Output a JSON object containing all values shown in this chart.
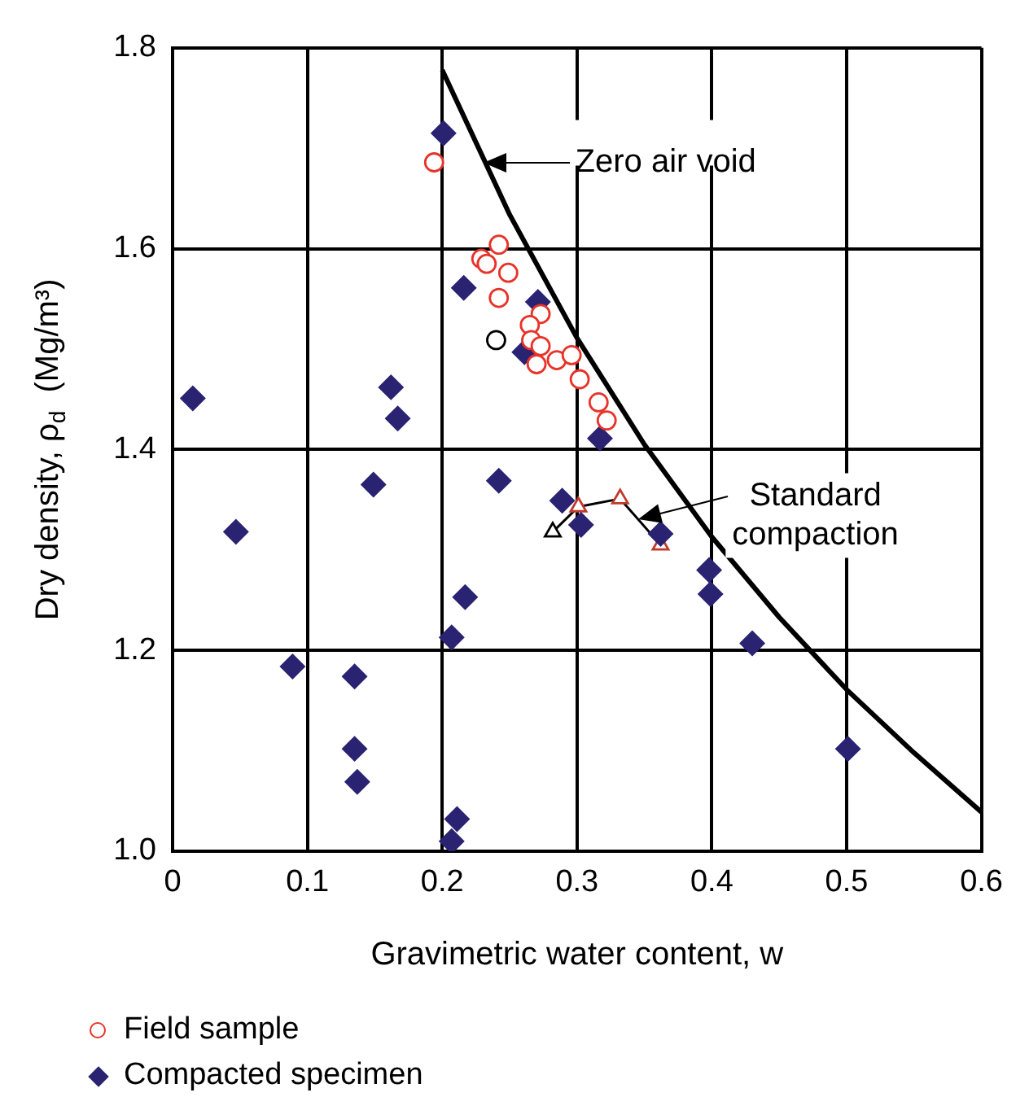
{
  "chart_data": {
    "type": "scatter",
    "xlabel": "Gravimetric water content, w",
    "ylabel": "Dry density, ρ$_{d}$  (Mg/m³)",
    "xlim": [
      0,
      0.6
    ],
    "xticks": [
      0,
      0.1,
      0.2,
      0.3,
      0.4,
      0.5,
      0.6
    ],
    "ylim": [
      1,
      1.8
    ],
    "yticks": [
      {
        "value": 1,
        "label": "1.0"
      },
      1.2,
      1.4,
      1.6,
      1.8
    ],
    "grid": true,
    "legend": "bottom left",
    "series": [
      {
        "name": "Field sample",
        "marker": "circle",
        "colors": [
          "#e8332a",
          "#e8332a",
          "#e8332a",
          "#e8332a",
          "#e8332a",
          "#e8332a",
          "#e8332a",
          "#e8332a",
          "#000000",
          "#e8332a",
          "#e8332a",
          "#e8332a",
          "#e8332a",
          "#e8332a",
          "#e8332a",
          "#e8332a",
          "#e8332a"
        ],
        "x": [
          0.194,
          0.242,
          0.229,
          0.233,
          0.249,
          0.242,
          0.273,
          0.265,
          0.24,
          0.266,
          0.273,
          0.285,
          0.296,
          0.27,
          0.302,
          0.316,
          0.322
        ],
        "values": [
          1.686,
          1.604,
          1.59,
          1.585,
          1.576,
          1.551,
          1.535,
          1.524,
          1.509,
          1.509,
          1.503,
          1.489,
          1.494,
          1.485,
          1.47,
          1.447,
          1.429
        ]
      },
      {
        "name": "Compacted specimen",
        "marker": "diamond",
        "color": "#2a2372",
        "x": [
          0.201,
          0.216,
          0.271,
          0.261,
          0.317,
          0.162,
          0.167,
          0.015,
          0.149,
          0.047,
          0.089,
          0.135,
          0.135,
          0.137,
          0.207,
          0.211,
          0.207,
          0.242,
          0.289,
          0.303,
          0.362,
          0.398,
          0.399,
          0.217,
          0.43,
          0.501
        ],
        "values": [
          1.715,
          1.561,
          1.547,
          1.497,
          1.411,
          1.462,
          1.431,
          1.451,
          1.365,
          1.318,
          1.184,
          1.174,
          1.102,
          1.069,
          1.213,
          1.032,
          1.01,
          1.369,
          1.349,
          1.325,
          1.316,
          1.28,
          1.256,
          1.253,
          1.207,
          1.102
        ]
      },
      {
        "type": "line",
        "marker": "none",
        "color": "#000000",
        "x": [
          0.2,
          0.25,
          0.3,
          0.35,
          0.4,
          0.45,
          0.5,
          0.55,
          0.6
        ],
        "values": [
          1.778,
          1.634,
          1.511,
          1.405,
          1.313,
          1.233,
          1.161,
          1.098,
          1.039
        ]
      },
      {
        "type": "line",
        "marker": "triangle",
        "color": "#000000",
        "colors": [
          "#000000",
          "#c0392b",
          "#c0392b",
          "#c0392b"
        ],
        "x": [
          0.282,
          0.301,
          0.332,
          0.362
        ],
        "values": [
          1.318,
          1.343,
          1.351,
          1.305
        ]
      }
    ],
    "annotations": [
      {
        "text": "Zero air void",
        "x": 0.231,
        "y": 1.686
      },
      {
        "text": "Standard compaction",
        "x": 0.345,
        "y": 1.331
      }
    ]
  }
}
